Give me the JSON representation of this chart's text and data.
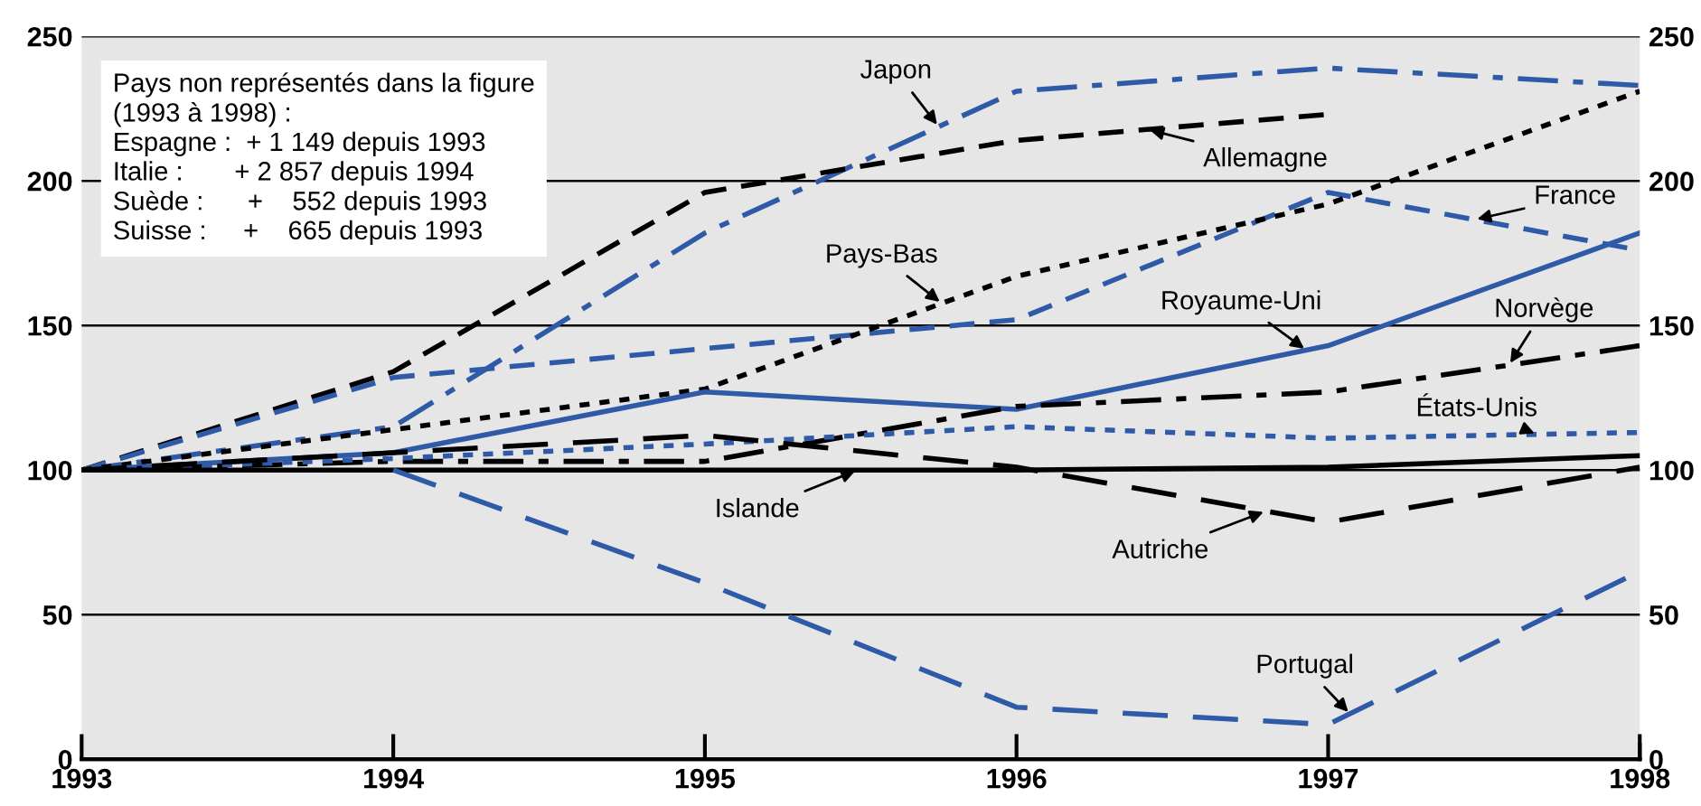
{
  "chart_data": {
    "type": "line",
    "x": [
      1993,
      1994,
      1995,
      1996,
      1997,
      1998
    ],
    "series": [
      {
        "name": "Japon",
        "color": "#2f5aa8",
        "line_style": "dashdot",
        "values": [
          100,
          115,
          182,
          231,
          239,
          233
        ]
      },
      {
        "name": "Allemagne",
        "color": "#000000",
        "line_style": "dashed",
        "values": [
          100,
          134,
          196,
          214,
          223,
          null
        ]
      },
      {
        "name": "France",
        "color": "#2f5aa8",
        "line_style": "dashed",
        "values": [
          100,
          132,
          142,
          152,
          196,
          176
        ]
      },
      {
        "name": "Pays-Bas",
        "color": "#000000",
        "line_style": "dotted",
        "values": [
          100,
          114,
          128,
          167,
          192,
          231
        ]
      },
      {
        "name": "Royaume-Uni",
        "color": "#2f5aa8",
        "line_style": "solid",
        "values": [
          100,
          106,
          127,
          121,
          143,
          182
        ]
      },
      {
        "name": "Norvège",
        "color": "#000000",
        "line_style": "dashdot",
        "values": [
          100,
          103,
          103,
          122,
          127,
          143
        ]
      },
      {
        "name": "États-Unis",
        "color": "#2f5aa8",
        "line_style": "dotted",
        "values": [
          100,
          104,
          109,
          115,
          111,
          113
        ]
      },
      {
        "name": "Islande",
        "color": "#000000",
        "line_style": "solid",
        "values": [
          100,
          100,
          100,
          100,
          101,
          105
        ]
      },
      {
        "name": "Autriche",
        "color": "#000000",
        "line_style": "longdash",
        "values": [
          100,
          106,
          112,
          101,
          82,
          101
        ]
      },
      {
        "name": "Portugal",
        "color": "#2f5aa8",
        "line_style": "longdash",
        "values": [
          null,
          100,
          61,
          18,
          12,
          65
        ]
      }
    ],
    "xlim": [
      1993,
      1998
    ],
    "xticks": [
      1993,
      1994,
      1995,
      1996,
      1997,
      1998
    ],
    "ylim": [
      0,
      250
    ],
    "yticks": [
      0,
      50,
      100,
      150,
      200,
      250
    ],
    "y2lim": [
      0,
      250
    ],
    "y2ticks": [
      0,
      50,
      100,
      150,
      200,
      250
    ],
    "grid": "y",
    "legend": false,
    "marker": "none",
    "annotations": [
      "Pays non représentés dans la figure\n(1993 à 1998) :\nEspagne :  + 1 149 depuis 1993\nItalie :       + 2 857 depuis 1994\nSuède :      +    552 depuis 1993\nSuisse :     +    665 depuis 1993"
    ]
  }
}
